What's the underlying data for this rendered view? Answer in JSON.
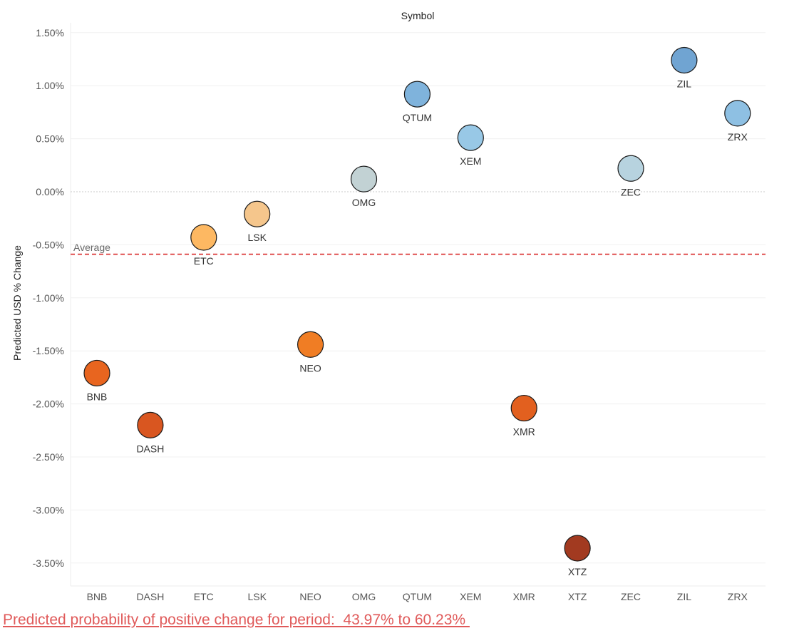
{
  "chart_data": {
    "type": "scatter",
    "title": "Symbol",
    "xlabel": "",
    "ylabel": "Predicted USD % Change",
    "ylim": [
      -3.7,
      1.6
    ],
    "grid": true,
    "categories": [
      "BNB",
      "DASH",
      "ETC",
      "LSK",
      "NEO",
      "OMG",
      "QTUM",
      "XEM",
      "XMR",
      "XTZ",
      "ZEC",
      "ZIL",
      "ZRX"
    ],
    "y_ticks": [
      1.5,
      1.0,
      0.5,
      0.0,
      -0.5,
      -1.0,
      -1.5,
      -2.0,
      -2.5,
      -3.0,
      -3.5
    ],
    "y_tick_labels": [
      "1.50%",
      "1.00%",
      "0.50%",
      "0.00%",
      "-0.50%",
      "-1.00%",
      "-1.50%",
      "-2.00%",
      "-2.50%",
      "-3.00%",
      "-3.50%"
    ],
    "points": [
      {
        "symbol": "BNB",
        "value": -1.71,
        "color": "#e8651f"
      },
      {
        "symbol": "DASH",
        "value": -2.2,
        "color": "#d95620"
      },
      {
        "symbol": "ETC",
        "value": -0.43,
        "color": "#fdb862"
      },
      {
        "symbol": "LSK",
        "value": -0.21,
        "color": "#f5c68c"
      },
      {
        "symbol": "NEO",
        "value": -1.44,
        "color": "#f07d24"
      },
      {
        "symbol": "OMG",
        "value": 0.12,
        "color": "#c2d2d4"
      },
      {
        "symbol": "QTUM",
        "value": 0.92,
        "color": "#7fb3dc"
      },
      {
        "symbol": "XEM",
        "value": 0.51,
        "color": "#98c8e6"
      },
      {
        "symbol": "XMR",
        "value": -2.04,
        "color": "#e2601f"
      },
      {
        "symbol": "XTZ",
        "value": -3.36,
        "color": "#a23a20"
      },
      {
        "symbol": "ZEC",
        "value": 0.22,
        "color": "#b7d3df"
      },
      {
        "symbol": "ZIL",
        "value": 1.24,
        "color": "#70a4d2"
      },
      {
        "symbol": "ZRX",
        "value": 0.74,
        "color": "#8ec0e3"
      }
    ],
    "reference_line": {
      "label": "Average",
      "value": -0.59,
      "color": "#e05050"
    }
  },
  "footer": {
    "text": "Predicted probability of positive change for period:  43.97% to 60.23% "
  }
}
